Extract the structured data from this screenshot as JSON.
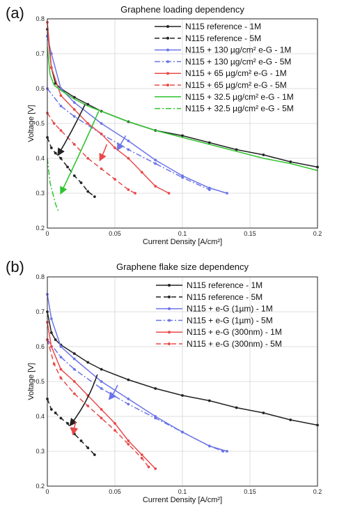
{
  "chart_data": [
    {
      "type": "line",
      "panel_label": "(a)",
      "title": "Graphene loading dependency",
      "xlabel": "Current Density [A/cm²]",
      "ylabel": "Voltage [V]",
      "xlim": [
        0,
        0.2
      ],
      "ylim": [
        0.2,
        0.8
      ],
      "x_ticks": [
        0,
        0.05,
        0.1,
        0.15,
        0.2
      ],
      "x_tick_labels": [
        "0",
        "0.05",
        "0.1",
        "0.15",
        "0.2"
      ],
      "y_ticks": [
        0.2,
        0.3,
        0.4,
        0.5,
        0.6,
        0.7,
        0.8
      ],
      "y_tick_labels": [
        "0.2",
        "0.3",
        "0.4",
        "0.5",
        "0.6",
        "0.7",
        "0.8"
      ],
      "grid": true,
      "legend_position": "top-right",
      "series": [
        {
          "name": "N115 reference - 1M",
          "color": "#222222",
          "dash": "solid",
          "marker": true,
          "x": [
            0,
            0.003,
            0.006,
            0.01,
            0.02,
            0.03,
            0.04,
            0.06,
            0.08,
            0.1,
            0.12,
            0.14,
            0.16,
            0.18,
            0.2
          ],
          "y": [
            0.77,
            0.66,
            0.615,
            0.6,
            0.575,
            0.555,
            0.535,
            0.505,
            0.48,
            0.465,
            0.445,
            0.425,
            0.41,
            0.39,
            0.375
          ]
        },
        {
          "name": "N115 reference - 5M",
          "color": "#222222",
          "dash": "dashed",
          "marker": true,
          "x": [
            0,
            0.003,
            0.006,
            0.01,
            0.015,
            0.02,
            0.025,
            0.03,
            0.035
          ],
          "y": [
            0.46,
            0.43,
            0.415,
            0.4,
            0.375,
            0.35,
            0.33,
            0.305,
            0.29
          ]
        },
        {
          "name": "N115 + 130 µg/cm² e-G - 1M",
          "color": "#6b74e8",
          "dash": "solid",
          "marker": true,
          "x": [
            0,
            0.003,
            0.01,
            0.02,
            0.04,
            0.06,
            0.08,
            0.1,
            0.12,
            0.133
          ],
          "y": [
            0.75,
            0.7,
            0.6,
            0.56,
            0.5,
            0.45,
            0.395,
            0.35,
            0.315,
            0.3
          ]
        },
        {
          "name": "N115 + 130 µg/cm² e-G - 5M",
          "color": "#6b74e8",
          "dash": "dashdot",
          "marker": true,
          "x": [
            0,
            0.01,
            0.02,
            0.04,
            0.06,
            0.08,
            0.1,
            0.12
          ],
          "y": [
            0.6,
            0.55,
            0.52,
            0.47,
            0.425,
            0.385,
            0.345,
            0.31
          ]
        },
        {
          "name": "N115 + 65 µg/cm² e-G - 1M",
          "color": "#e84a4a",
          "dash": "solid",
          "marker": true,
          "x": [
            0,
            0.003,
            0.01,
            0.02,
            0.03,
            0.04,
            0.05,
            0.06,
            0.07,
            0.08,
            0.09
          ],
          "y": [
            0.79,
            0.66,
            0.58,
            0.54,
            0.5,
            0.47,
            0.43,
            0.4,
            0.36,
            0.32,
            0.3
          ]
        },
        {
          "name": "N115 + 65 µg/cm² e-G - 5M",
          "color": "#e84a4a",
          "dash": "dashed",
          "marker": true,
          "x": [
            0,
            0.005,
            0.01,
            0.02,
            0.03,
            0.04,
            0.05,
            0.06,
            0.065
          ],
          "y": [
            0.53,
            0.5,
            0.48,
            0.44,
            0.4,
            0.37,
            0.34,
            0.31,
            0.3
          ]
        },
        {
          "name": "N115 + 32.5 µg/cm² e-G - 1M",
          "color": "#2fc42f",
          "dash": "solid",
          "marker": false,
          "x": [
            0,
            0.002,
            0.005,
            0.01,
            0.02,
            0.03,
            0.04,
            0.06,
            0.08,
            0.1,
            0.12,
            0.14,
            0.16,
            0.18,
            0.2
          ],
          "y": [
            0.72,
            0.64,
            0.61,
            0.595,
            0.57,
            0.55,
            0.535,
            0.505,
            0.48,
            0.46,
            0.44,
            0.42,
            0.4,
            0.385,
            0.365
          ]
        },
        {
          "name": "N115 + 32.5 µg/cm² e-G - 5M",
          "color": "#2fc42f",
          "dash": "dashdot",
          "marker": false,
          "x": [
            0,
            0.002,
            0.004,
            0.006,
            0.008
          ],
          "y": [
            0.4,
            0.33,
            0.3,
            0.27,
            0.25
          ]
        }
      ],
      "arrows": [
        {
          "color": "#222222",
          "x": [
            0.028,
            0.018,
            0.008
          ],
          "y": [
            0.555,
            0.475,
            0.41
          ]
        },
        {
          "color": "#6b74e8",
          "x": [
            0.058,
            0.055,
            0.052
          ],
          "y": [
            0.465,
            0.445,
            0.425
          ]
        },
        {
          "color": "#e84a4a",
          "x": [
            0.044,
            0.042,
            0.039
          ],
          "y": [
            0.44,
            0.418,
            0.395
          ]
        },
        {
          "color": "#2fc42f",
          "x": [
            0.038,
            0.025,
            0.01
          ],
          "y": [
            0.535,
            0.42,
            0.3
          ]
        }
      ]
    },
    {
      "type": "line",
      "panel_label": "(b)",
      "title": "Graphene flake size dependency",
      "xlabel": "Current Density [A/cm²]",
      "ylabel": "Voltage [V]",
      "xlim": [
        0,
        0.2
      ],
      "ylim": [
        0.2,
        0.8
      ],
      "x_ticks": [
        0,
        0.05,
        0.1,
        0.15,
        0.2
      ],
      "x_tick_labels": [
        "0",
        "0.05",
        "0.1",
        "0.15",
        "0.2"
      ],
      "y_ticks": [
        0.2,
        0.3,
        0.4,
        0.5,
        0.6,
        0.7,
        0.8
      ],
      "y_tick_labels": [
        "0.2",
        "0.3",
        "0.4",
        "0.5",
        "0.6",
        "0.7",
        "0.8"
      ],
      "grid": true,
      "legend_position": "top-right",
      "series": [
        {
          "name": "N115 reference - 1M",
          "color": "#222222",
          "dash": "solid",
          "marker": true,
          "x": [
            0,
            0.003,
            0.006,
            0.01,
            0.02,
            0.03,
            0.04,
            0.06,
            0.08,
            0.1,
            0.12,
            0.14,
            0.16,
            0.18,
            0.2
          ],
          "y": [
            0.7,
            0.64,
            0.62,
            0.605,
            0.58,
            0.555,
            0.535,
            0.505,
            0.48,
            0.46,
            0.445,
            0.425,
            0.41,
            0.39,
            0.375
          ]
        },
        {
          "name": "N115 reference - 5M",
          "color": "#222222",
          "dash": "dashed",
          "marker": true,
          "x": [
            0,
            0.003,
            0.006,
            0.01,
            0.015,
            0.02,
            0.025,
            0.03,
            0.035
          ],
          "y": [
            0.45,
            0.42,
            0.41,
            0.395,
            0.38,
            0.35,
            0.33,
            0.31,
            0.29
          ]
        },
        {
          "name": "N115 + e-G (1µm) - 1M",
          "color": "#6b74e8",
          "dash": "solid",
          "marker": true,
          "x": [
            0,
            0.003,
            0.01,
            0.02,
            0.04,
            0.06,
            0.08,
            0.1,
            0.12,
            0.133
          ],
          "y": [
            0.75,
            0.68,
            0.6,
            0.565,
            0.5,
            0.45,
            0.4,
            0.355,
            0.315,
            0.3
          ]
        },
        {
          "name": "N115 + e-G (1µm) - 5M",
          "color": "#6b74e8",
          "dash": "dashdot",
          "marker": true,
          "x": [
            0,
            0.01,
            0.02,
            0.04,
            0.06,
            0.08,
            0.1,
            0.12,
            0.13
          ],
          "y": [
            0.62,
            0.57,
            0.535,
            0.48,
            0.435,
            0.395,
            0.355,
            0.315,
            0.3
          ]
        },
        {
          "name": "N115 + e-G (300nm) - 1M",
          "color": "#e84a4a",
          "dash": "solid",
          "marker": true,
          "x": [
            0,
            0.003,
            0.01,
            0.02,
            0.03,
            0.04,
            0.05,
            0.06,
            0.07,
            0.08
          ],
          "y": [
            0.67,
            0.6,
            0.535,
            0.5,
            0.46,
            0.42,
            0.38,
            0.33,
            0.29,
            0.25
          ]
        },
        {
          "name": "N115 + e-G (300nm) - 5M",
          "color": "#e84a4a",
          "dash": "dashed",
          "marker": true,
          "x": [
            0,
            0.005,
            0.01,
            0.02,
            0.03,
            0.04,
            0.05,
            0.06,
            0.07,
            0.075
          ],
          "y": [
            0.62,
            0.55,
            0.51,
            0.465,
            0.43,
            0.395,
            0.36,
            0.32,
            0.28,
            0.255
          ]
        }
      ],
      "arrows": [
        {
          "color": "#222222",
          "x": [
            0.037,
            0.03,
            0.017
          ],
          "y": [
            0.52,
            0.44,
            0.375
          ]
        },
        {
          "color": "#6b74e8",
          "x": [
            0.052,
            0.05,
            0.046
          ],
          "y": [
            0.49,
            0.47,
            0.45
          ]
        },
        {
          "color": "#e84a4a",
          "x": [
            0.021,
            0.02,
            0.019
          ],
          "y": [
            0.385,
            0.368,
            0.35
          ]
        }
      ]
    }
  ]
}
